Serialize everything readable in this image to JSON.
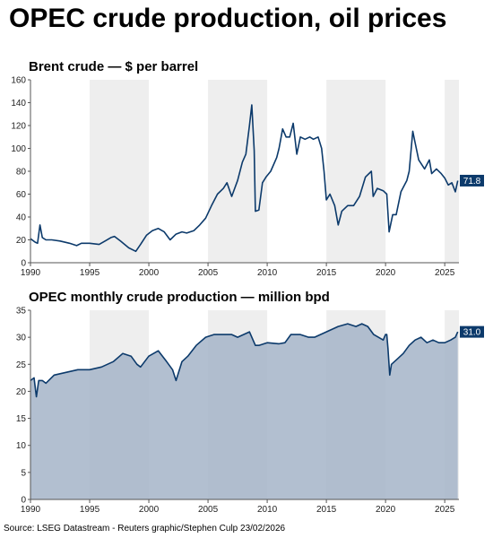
{
  "title": "OPEC crude production, oil prices",
  "source": "Source: LSEG Datastream   - Reuters graphic/Stephen Culp 23/02/2026",
  "colors": {
    "line": "#0c3a6b",
    "area": "#a4b4c8",
    "band": "#eeeeee",
    "axis": "#555555"
  },
  "recession_bands": [
    [
      1995,
      2000
    ],
    [
      2005,
      2010
    ],
    [
      2015,
      2020
    ],
    [
      2025,
      2026.2
    ]
  ],
  "chart_data": [
    {
      "type": "line",
      "title": "Brent crude — $ per barrel",
      "xlim": [
        1990,
        2026.2
      ],
      "ylim": [
        0,
        160
      ],
      "yticks": [
        0,
        20,
        40,
        60,
        80,
        100,
        120,
        140,
        160
      ],
      "xticks": [
        1990,
        1995,
        2000,
        2005,
        2010,
        2015,
        2020,
        2025
      ],
      "last_label": "71.8",
      "series": [
        {
          "x": [
            1990.0,
            1990.4,
            1990.6,
            1990.8,
            1991.0,
            1991.3,
            1991.8,
            1992.5,
            1993.3,
            1993.9,
            1994.3,
            1995.0,
            1995.8,
            1996.3,
            1996.8,
            1997.1,
            1997.6,
            1998.3,
            1998.9,
            1999.3,
            1999.8,
            2000.3,
            2000.8,
            2001.3,
            2001.8,
            2002.3,
            2002.8,
            2003.2,
            2003.8,
            2004.3,
            2004.8,
            2005.3,
            2005.8,
            2006.3,
            2006.6,
            2007.0,
            2007.5,
            2007.9,
            2008.2,
            2008.5,
            2008.7,
            2008.9,
            2009.0,
            2009.3,
            2009.6,
            2009.9,
            2010.3,
            2010.8,
            2011.0,
            2011.3,
            2011.6,
            2011.9,
            2012.2,
            2012.5,
            2012.8,
            2013.2,
            2013.6,
            2013.9,
            2014.3,
            2014.6,
            2014.8,
            2015.0,
            2015.3,
            2015.7,
            2016.0,
            2016.3,
            2016.8,
            2017.3,
            2017.8,
            2018.3,
            2018.8,
            2018.95,
            2019.3,
            2019.8,
            2020.1,
            2020.3,
            2020.6,
            2020.9,
            2021.3,
            2021.8,
            2022.0,
            2022.3,
            2022.5,
            2022.8,
            2023.3,
            2023.7,
            2023.9,
            2024.3,
            2024.7,
            2025.0,
            2025.3,
            2025.6,
            2025.9,
            2026.1
          ],
          "y": [
            21,
            18,
            17,
            33,
            22,
            20,
            20,
            19,
            17,
            15,
            17,
            17,
            16,
            19,
            22,
            23,
            19,
            13,
            10,
            16,
            24,
            28,
            30,
            27,
            20,
            25,
            27,
            26,
            28,
            33,
            39,
            50,
            60,
            65,
            70,
            58,
            72,
            88,
            95,
            120,
            138,
            98,
            45,
            46,
            70,
            75,
            80,
            92,
            100,
            117,
            110,
            110,
            122,
            95,
            110,
            108,
            110,
            108,
            110,
            100,
            80,
            55,
            60,
            50,
            33,
            45,
            50,
            50,
            58,
            75,
            80,
            58,
            65,
            63,
            60,
            27,
            42,
            42,
            62,
            72,
            80,
            115,
            105,
            90,
            82,
            90,
            78,
            82,
            78,
            74,
            68,
            70,
            62,
            71.8
          ]
        }
      ]
    },
    {
      "type": "area",
      "title": "OPEC monthly crude production — million bpd",
      "xlim": [
        1990,
        2026.2
      ],
      "ylim": [
        0,
        35
      ],
      "yticks": [
        0,
        5,
        10,
        15,
        20,
        25,
        30,
        35
      ],
      "xticks": [
        1990,
        1995,
        2000,
        2005,
        2010,
        2015,
        2020,
        2025
      ],
      "last_label": "31.0",
      "series": [
        {
          "x": [
            1990.0,
            1990.3,
            1990.5,
            1990.7,
            1991.0,
            1991.3,
            1992.0,
            1993.0,
            1994.0,
            1995.0,
            1996.0,
            1997.0,
            1997.8,
            1998.5,
            1999.0,
            1999.3,
            2000.0,
            2000.8,
            2001.5,
            2002.0,
            2002.3,
            2002.8,
            2003.3,
            2004.0,
            2004.8,
            2005.5,
            2006.3,
            2007.0,
            2007.5,
            2008.5,
            2009.0,
            2009.3,
            2010.0,
            2011.0,
            2011.5,
            2012.0,
            2012.8,
            2013.5,
            2014.0,
            2015.0,
            2016.0,
            2016.8,
            2017.5,
            2018.0,
            2018.5,
            2019.0,
            2019.8,
            2020.0,
            2020.1,
            2020.2,
            2020.35,
            2020.5,
            2021.0,
            2021.5,
            2022.0,
            2022.5,
            2023.0,
            2023.5,
            2024.0,
            2024.5,
            2025.0,
            2025.5,
            2025.9,
            2026.1
          ],
          "y": [
            22,
            22.5,
            19,
            22,
            22,
            21.5,
            23,
            23.5,
            24,
            24,
            24.5,
            25.5,
            27,
            26.5,
            25,
            24.5,
            26.5,
            27.5,
            25.5,
            24,
            22,
            25.5,
            26.5,
            28.5,
            30,
            30.5,
            30.5,
            30.5,
            30,
            31,
            28.5,
            28.5,
            29,
            28.8,
            29,
            30.5,
            30.5,
            30,
            30,
            31,
            32,
            32.5,
            32,
            32.5,
            32,
            30.5,
            29.5,
            30.5,
            30.5,
            28,
            23,
            25,
            26,
            27,
            28.5,
            29.5,
            30,
            29,
            29.5,
            29,
            29,
            29.5,
            30,
            31
          ]
        }
      ]
    }
  ]
}
